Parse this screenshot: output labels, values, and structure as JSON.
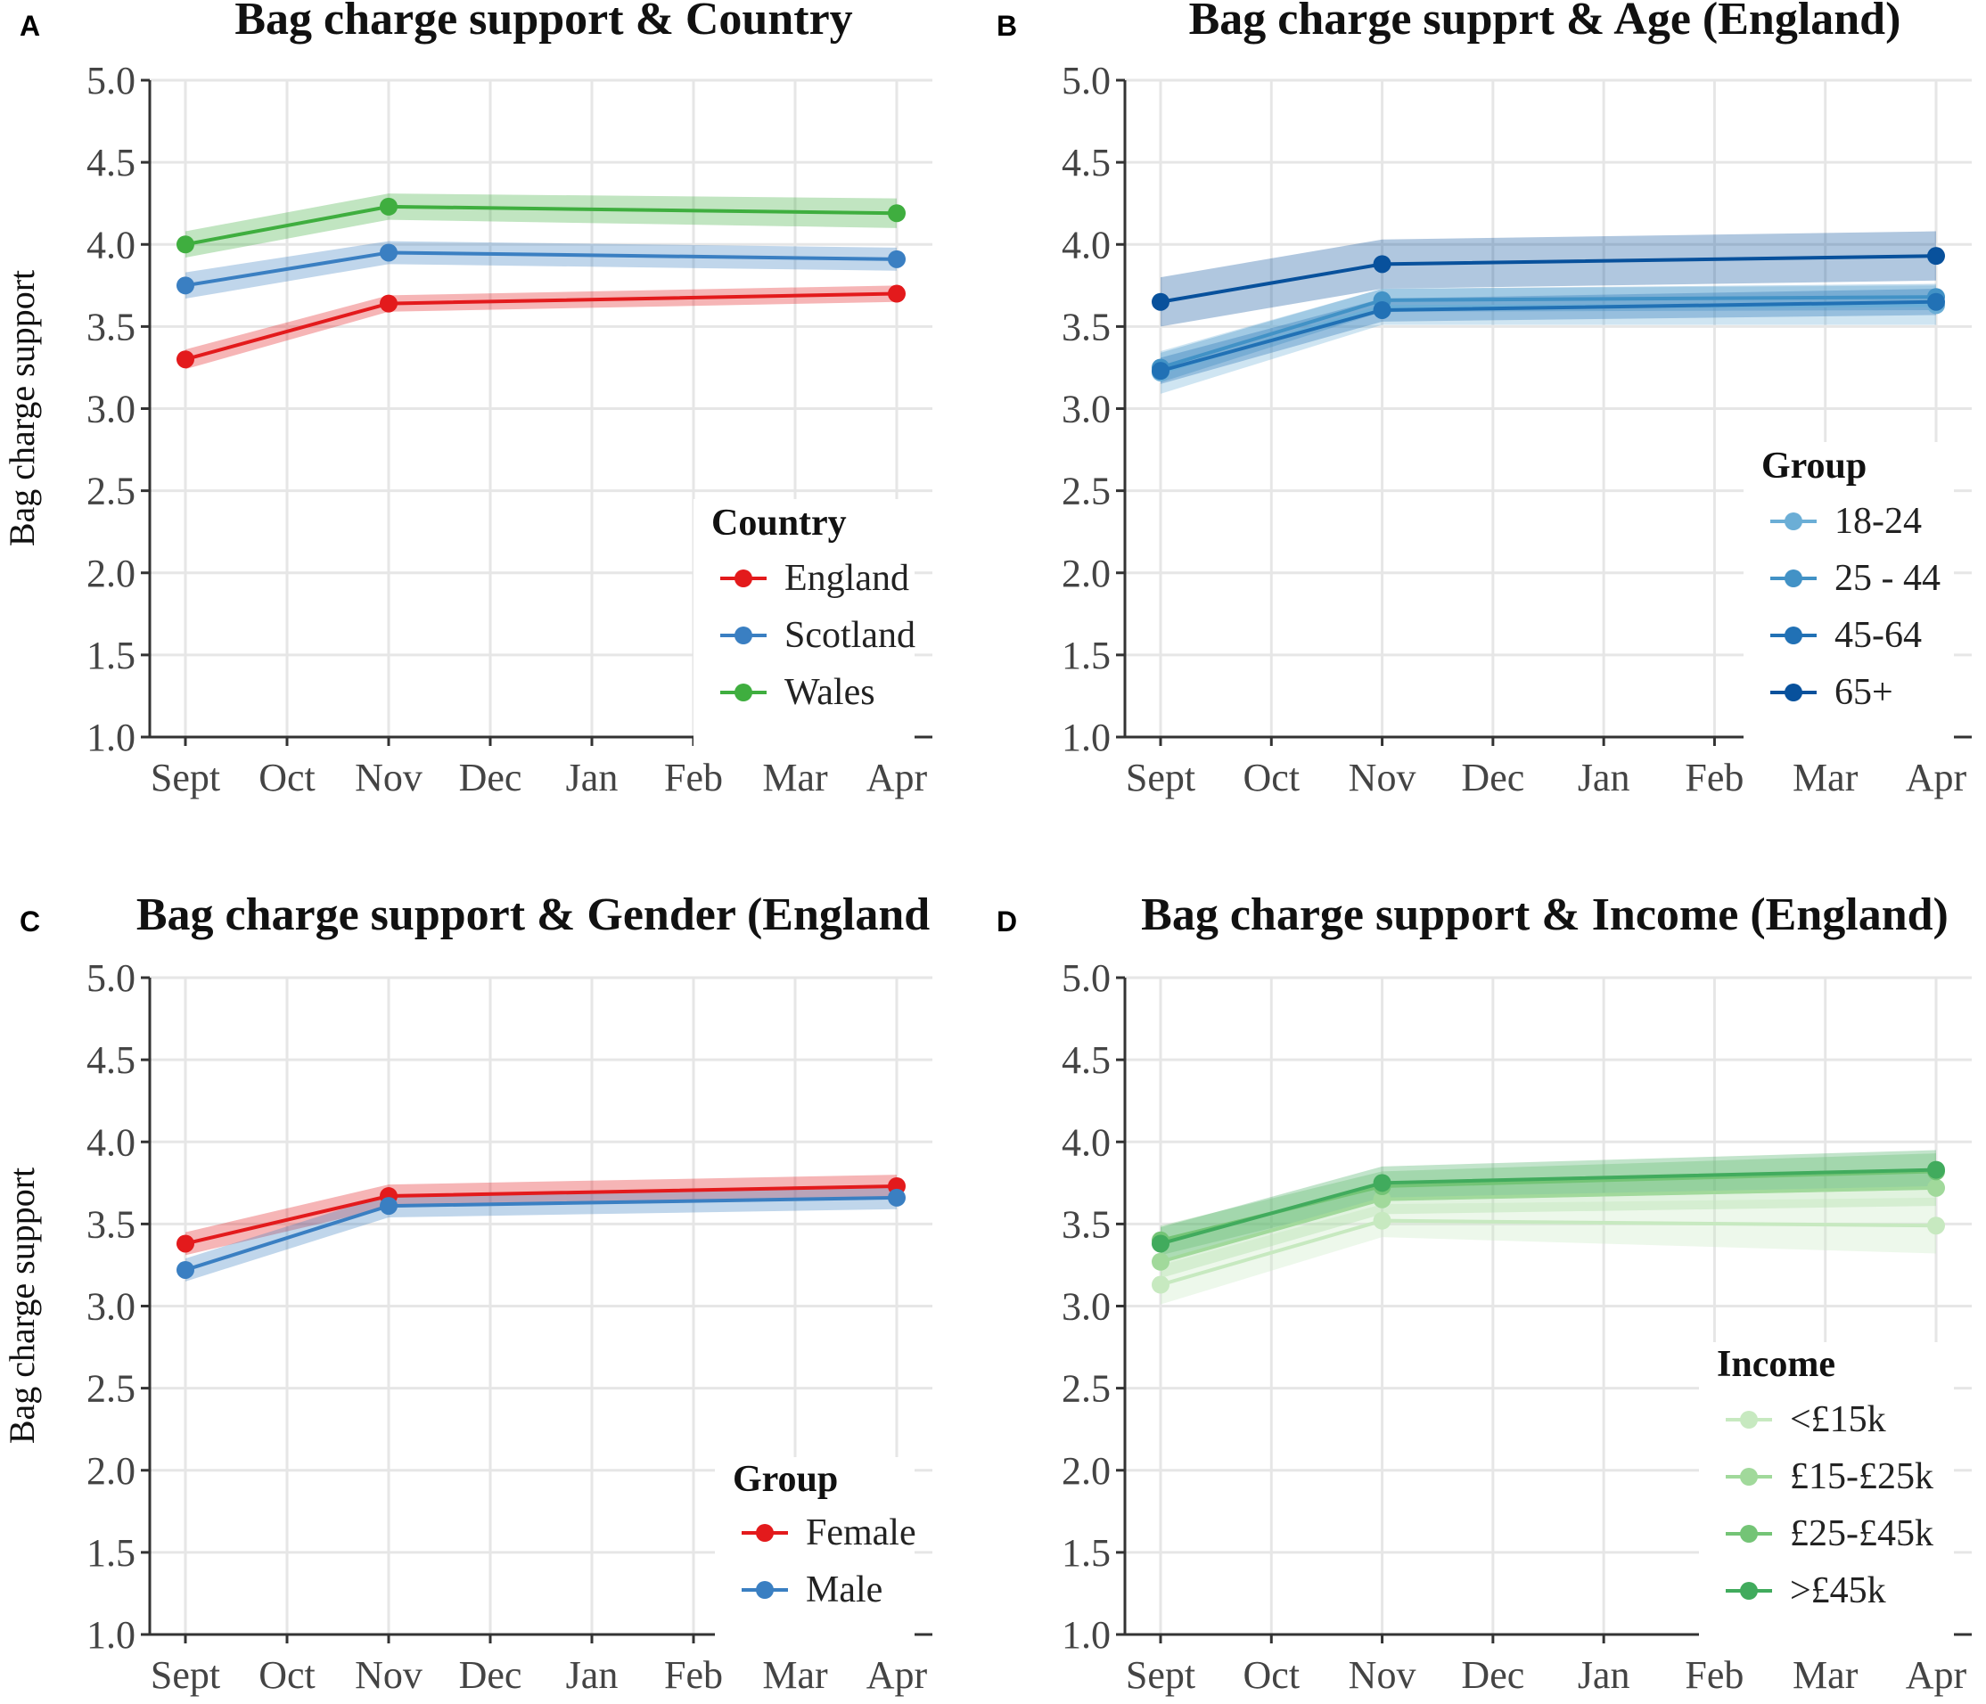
{
  "chart_data": [
    {
      "type": "line",
      "panel": "A",
      "title": "Bag charge support & Country",
      "ylabel": "Bag charge support",
      "xlabel": "",
      "categories": [
        "Sept",
        "Oct",
        "Nov",
        "Dec",
        "Jan",
        "Feb",
        "Mar",
        "Apr"
      ],
      "ylim": [
        1.0,
        5.0
      ],
      "yticks": [
        "1.0",
        "1.5",
        "2.0",
        "2.5",
        "3.0",
        "3.5",
        "4.0",
        "4.5",
        "5.0"
      ],
      "legend": {
        "title": "Country",
        "position": "bottom-right"
      },
      "series": [
        {
          "name": "England",
          "color": "#e31a1c",
          "x": [
            0,
            2,
            7
          ],
          "values": [
            3.3,
            3.64,
            3.7
          ],
          "ci": [
            0.06,
            0.05,
            0.05
          ]
        },
        {
          "name": "Scotland",
          "color": "#3a7fc2",
          "x": [
            0,
            2,
            7
          ],
          "values": [
            3.75,
            3.95,
            3.91
          ],
          "ci": [
            0.08,
            0.07,
            0.07
          ]
        },
        {
          "name": "Wales",
          "color": "#3fae3f",
          "x": [
            0,
            2,
            7
          ],
          "values": [
            4.0,
            4.23,
            4.19
          ],
          "ci": [
            0.08,
            0.08,
            0.09
          ]
        }
      ]
    },
    {
      "type": "line",
      "panel": "B",
      "title": "Bag charge supprt & Age (England)",
      "ylabel": "",
      "xlabel": "",
      "categories": [
        "Sept",
        "Oct",
        "Nov",
        "Dec",
        "Jan",
        "Feb",
        "Mar",
        "Apr"
      ],
      "ylim": [
        1.0,
        5.0
      ],
      "yticks": [
        "1.0",
        "1.5",
        "2.0",
        "2.5",
        "3.0",
        "3.5",
        "4.0",
        "4.5",
        "5.0"
      ],
      "legend": {
        "title": "Group",
        "position": "bottom-right"
      },
      "series": [
        {
          "name": "18-24",
          "color": "#6baed6",
          "x": [
            0,
            2,
            7
          ],
          "values": [
            3.22,
            3.62,
            3.63
          ],
          "ci": [
            0.13,
            0.11,
            0.12
          ]
        },
        {
          "name": "25 - 44",
          "color": "#4292c6",
          "x": [
            0,
            2,
            7
          ],
          "values": [
            3.25,
            3.66,
            3.68
          ],
          "ci": [
            0.09,
            0.07,
            0.08
          ]
        },
        {
          "name": "45-64",
          "color": "#2171b5",
          "x": [
            0,
            2,
            7
          ],
          "values": [
            3.23,
            3.6,
            3.65
          ],
          "ci": [
            0.08,
            0.07,
            0.08
          ]
        },
        {
          "name": "65+",
          "color": "#08519c",
          "x": [
            0,
            2,
            7
          ],
          "values": [
            3.65,
            3.88,
            3.93
          ],
          "ci": [
            0.15,
            0.15,
            0.15
          ]
        }
      ]
    },
    {
      "type": "line",
      "panel": "C",
      "title": "Bag charge support & Gender (England",
      "ylabel": "Bag charge support",
      "xlabel": "",
      "categories": [
        "Sept",
        "Oct",
        "Nov",
        "Dec",
        "Jan",
        "Feb",
        "Mar",
        "Apr"
      ],
      "ylim": [
        1.0,
        5.0
      ],
      "yticks": [
        "1.0",
        "1.5",
        "2.0",
        "2.5",
        "3.0",
        "3.5",
        "4.0",
        "4.5",
        "5.0"
      ],
      "legend": {
        "title": "Group",
        "position": "bottom-right"
      },
      "series": [
        {
          "name": "Female",
          "color": "#e31a1c",
          "x": [
            0,
            2,
            7
          ],
          "values": [
            3.38,
            3.67,
            3.73
          ],
          "ci": [
            0.07,
            0.07,
            0.07
          ]
        },
        {
          "name": "Male",
          "color": "#3a7fc2",
          "x": [
            0,
            2,
            7
          ],
          "values": [
            3.22,
            3.61,
            3.66
          ],
          "ci": [
            0.07,
            0.07,
            0.07
          ]
        }
      ]
    },
    {
      "type": "line",
      "panel": "D",
      "title": "Bag charge support & Income (England)",
      "ylabel": "",
      "xlabel": "",
      "categories": [
        "Sept",
        "Oct",
        "Nov",
        "Dec",
        "Jan",
        "Feb",
        "Mar",
        "Apr"
      ],
      "ylim": [
        1.0,
        5.0
      ],
      "yticks": [
        "1.0",
        "1.5",
        "2.0",
        "2.5",
        "3.0",
        "3.5",
        "4.0",
        "4.5",
        "5.0"
      ],
      "legend": {
        "title": "Income",
        "position": "bottom-right"
      },
      "series": [
        {
          "name": "<£15k",
          "color": "#c7e9c0",
          "x": [
            0,
            2,
            7
          ],
          "values": [
            3.13,
            3.52,
            3.49
          ],
          "ci": [
            0.12,
            0.1,
            0.17
          ]
        },
        {
          "name": "£15-£25k",
          "color": "#a1d99b",
          "x": [
            0,
            2,
            7
          ],
          "values": [
            3.27,
            3.65,
            3.72
          ],
          "ci": [
            0.1,
            0.09,
            0.11
          ]
        },
        {
          "name": "£25-£45k",
          "color": "#74c476",
          "x": [
            0,
            2,
            7
          ],
          "values": [
            3.4,
            3.73,
            3.82
          ],
          "ci": [
            0.09,
            0.09,
            0.11
          ]
        },
        {
          "name": ">£45k",
          "color": "#41ab5d",
          "x": [
            0,
            2,
            7
          ],
          "values": [
            3.38,
            3.75,
            3.83
          ],
          "ci": [
            0.1,
            0.1,
            0.12
          ]
        }
      ]
    }
  ]
}
